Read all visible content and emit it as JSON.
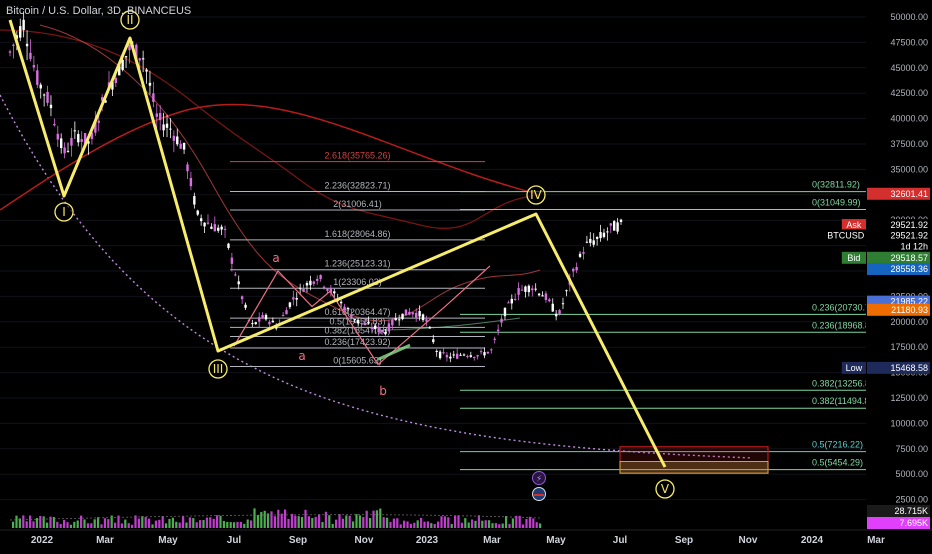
{
  "header": {
    "title": "Bitcoin / U.S. Dollar, 3D, BINANCEUS"
  },
  "colors": {
    "background": "#000000",
    "wave_line": "#f7ec6b",
    "up_candle": "#d86fe0",
    "down_candle": "#ffffff",
    "ma_red": "#b71c1c",
    "ma_orange": "#e65100",
    "log_curve": "#c08ae0",
    "fib_line": "#b2b5be",
    "fib_green": "#7fd6a0",
    "fib_cyan": "#5ed0d0",
    "fib_red": "#d84040",
    "volume_up": "#c03dd0",
    "volume_down": "#4caf50",
    "target_box": "#b71c1c"
  },
  "chart_data": {
    "type": "candlestick",
    "title": "Bitcoin / U.S. Dollar, 3D, BINANCEUS",
    "x_ticks": [
      "2022",
      "Mar",
      "May",
      "Jul",
      "Sep",
      "Nov",
      "2023",
      "Mar",
      "May",
      "Jul",
      "Sep",
      "Nov",
      "2024",
      "Mar"
    ],
    "y_ticks": [
      2500,
      5000,
      7500,
      10000,
      12500,
      15000,
      17500,
      20000,
      22500,
      25000,
      27500,
      30000,
      32500,
      35000,
      37500,
      40000,
      42500,
      45000,
      47500,
      50000
    ],
    "y_labels": [
      "2500.00",
      "5000.00",
      "7500.00",
      "10000.00",
      "12500.00",
      "15000.00",
      "17500.00",
      "20000.00",
      "22500.00",
      "25000.00",
      "27500.00",
      "30000.00",
      "32500.00",
      "35000.00",
      "37500.00",
      "40000.00",
      "42500.00",
      "45000.00",
      "47500.00",
      "50000.00"
    ],
    "ylim": [
      0,
      51000
    ],
    "price_path": [
      {
        "t": 0.0,
        "p": 46500
      },
      {
        "t": 0.3,
        "p": 49500
      },
      {
        "t": 0.6,
        "p": 44000
      },
      {
        "t": 0.9,
        "p": 41500
      },
      {
        "t": 1.2,
        "p": 36500
      },
      {
        "t": 1.5,
        "p": 38500
      },
      {
        "t": 1.8,
        "p": 37500
      },
      {
        "t": 2.1,
        "p": 42000
      },
      {
        "t": 2.4,
        "p": 44500
      },
      {
        "t": 2.7,
        "p": 47000
      },
      {
        "t": 3.0,
        "p": 46000
      },
      {
        "t": 3.3,
        "p": 40000
      },
      {
        "t": 3.6,
        "p": 39000
      },
      {
        "t": 3.9,
        "p": 37000
      },
      {
        "t": 4.2,
        "p": 30500
      },
      {
        "t": 4.5,
        "p": 29500
      },
      {
        "t": 4.8,
        "p": 29000
      },
      {
        "t": 5.1,
        "p": 24000
      },
      {
        "t": 5.4,
        "p": 19500
      },
      {
        "t": 5.7,
        "p": 20500
      },
      {
        "t": 6.0,
        "p": 19500
      },
      {
        "t": 6.3,
        "p": 22000
      },
      {
        "t": 6.6,
        "p": 23500
      },
      {
        "t": 6.9,
        "p": 24500
      },
      {
        "t": 7.2,
        "p": 23000
      },
      {
        "t": 7.5,
        "p": 21500
      },
      {
        "t": 7.8,
        "p": 20000
      },
      {
        "t": 8.1,
        "p": 19500
      },
      {
        "t": 8.4,
        "p": 19000
      },
      {
        "t": 8.7,
        "p": 20500
      },
      {
        "t": 9.0,
        "p": 21000
      },
      {
        "t": 9.3,
        "p": 20500
      },
      {
        "t": 9.6,
        "p": 16800
      },
      {
        "t": 9.9,
        "p": 16500
      },
      {
        "t": 10.2,
        "p": 16900
      },
      {
        "t": 10.5,
        "p": 16700
      },
      {
        "t": 10.8,
        "p": 17200
      },
      {
        "t": 11.1,
        "p": 21000
      },
      {
        "t": 11.4,
        "p": 23000
      },
      {
        "t": 11.7,
        "p": 23500
      },
      {
        "t": 12.0,
        "p": 22500
      },
      {
        "t": 12.3,
        "p": 20500
      },
      {
        "t": 12.6,
        "p": 24500
      },
      {
        "t": 12.9,
        "p": 27500
      },
      {
        "t": 13.2,
        "p": 28200
      },
      {
        "t": 13.5,
        "p": 29300
      },
      {
        "t": 13.7,
        "p": 29521.92
      }
    ],
    "elliott_wave": [
      {
        "label": "I",
        "t": 0.9,
        "p": 33000
      },
      {
        "label": "II",
        "t": 2.75,
        "p": 48500
      },
      {
        "label": "III",
        "t": 5.45,
        "p": 17600
      },
      {
        "label": "IV",
        "t": 13.7,
        "p": 31050
      },
      {
        "label": "V",
        "t": 16.6,
        "p": 5900
      }
    ],
    "wave_start": {
      "t": 0.0,
      "p": 47500
    },
    "subwaves": [
      {
        "label": "a",
        "t": 6.75,
        "p": 26500
      },
      {
        "label": "a",
        "t": 7.6,
        "p": 16500
      },
      {
        "label": "b",
        "t": 9.5,
        "p": 12300
      }
    ],
    "fib_retracement_top": {
      "t_start": 5.7,
      "t_end": 12.0,
      "levels": [
        {
          "label": "2.618(35765.26)",
          "p": 35765.26,
          "color": "red"
        },
        {
          "label": "2.236(32823.71)",
          "p": 32823.71
        },
        {
          "label": "2(31006.41)",
          "p": 31006.41
        },
        {
          "label": "1.618(28064.86)",
          "p": 28064.86
        },
        {
          "label": "1.236(25123.31)",
          "p": 25123.31
        },
        {
          "label": "1(23306.02)",
          "p": 23306.02
        },
        {
          "label": "0.618(20364.47)",
          "p": 20364.47
        },
        {
          "label": "0.5(19455.83)",
          "p": 19455.83
        },
        {
          "label": "0.382(18547.18)",
          "p": 18547.18
        },
        {
          "label": "0.236(17423.92)",
          "p": 17423.92
        },
        {
          "label": "0(15605.63)",
          "p": 15605.63
        }
      ]
    },
    "fib_right": [
      {
        "label": "0(32811.92)",
        "p": 32811.92,
        "color": "green"
      },
      {
        "label": "0(31049.99)",
        "p": 31049.99,
        "color": "green"
      },
      {
        "label": "0.236(20730.75)",
        "p": 20730.75,
        "color": "green"
      },
      {
        "label": "0.236(18968.82)",
        "p": 18968.82,
        "color": "green"
      },
      {
        "label": "0.382(13256.81)",
        "p": 13256.81,
        "color": "green"
      },
      {
        "label": "0.382(11494.87)",
        "p": 11494.87,
        "color": "green"
      },
      {
        "label": "0.5(7216.22)",
        "p": 7216.22,
        "color": "cyan"
      },
      {
        "label": "0.5(5454.29)",
        "p": 5454.29,
        "color": "green"
      }
    ],
    "price_tags": [
      {
        "text": "32601.41",
        "p": 32601.41,
        "bg": "#d32f2f"
      },
      {
        "text": "29521.92",
        "p": 29521.92,
        "bg": "#000000",
        "prefix": "Ask"
      },
      {
        "text": "29521.92",
        "p": 28500,
        "bg": "#000000",
        "prefix": "BTCUSD"
      },
      {
        "text": "1d 12h",
        "p": 27400,
        "bg": "#000000"
      },
      {
        "text": "29518.57",
        "p": 26300,
        "bg": "#2e7d32",
        "prefix": "Bid"
      },
      {
        "text": "28558.36",
        "p": 25200,
        "bg": "#1565c0"
      },
      {
        "text": "21985.22",
        "p": 21985.22,
        "bg": "#4a6fd6"
      },
      {
        "text": "21180.93",
        "p": 21180.93,
        "bg": "#ef6c00"
      },
      {
        "text": "15468.58",
        "p": 15468.58,
        "bg": "#1e2a5a",
        "prefix": "Low"
      }
    ],
    "volume_tags": [
      {
        "text": "28.715K",
        "bg": "#1b1b1b"
      },
      {
        "text": "7.695K",
        "bg": "#e040fb"
      }
    ]
  }
}
